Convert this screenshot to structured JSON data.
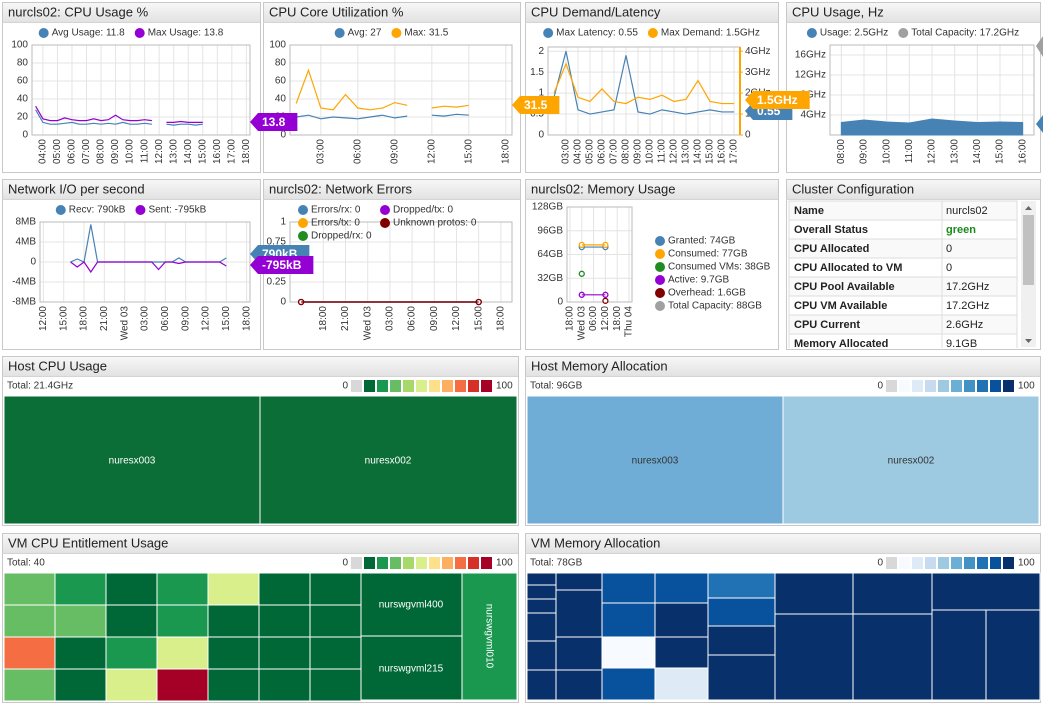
{
  "chart_data": [
    {
      "type": "line",
      "title": "nurcls02: CPU Usage %",
      "legend": "top",
      "categories": [
        null,
        "04:00",
        null,
        "05:00",
        null,
        "06:00",
        null,
        "07:00",
        null,
        "08:00",
        null,
        "09:00",
        null,
        "10:00",
        null,
        "11:00",
        null,
        "12:00",
        null,
        "13:00",
        null,
        "14:00",
        null,
        "15:00",
        null,
        "16:00",
        null,
        "17:00",
        null,
        "18:00"
      ],
      "series": [
        {
          "name": "Avg Usage: 11.8",
          "color": "#4682b4",
          "values": [
            28,
            14,
            12,
            12,
            13,
            14,
            12,
            12,
            13,
            12,
            13,
            12,
            14,
            12,
            12,
            13,
            12,
            null,
            12,
            11,
            12,
            12,
            11,
            12,
            null,
            null,
            null,
            null,
            null,
            null
          ]
        },
        {
          "name": "Max Usage: 13.8",
          "color": "#9400d3",
          "values": [
            32,
            18,
            16,
            16,
            19,
            17,
            16,
            16,
            18,
            16,
            17,
            22,
            17,
            16,
            16,
            17,
            16,
            null,
            14,
            14,
            15,
            14,
            14,
            14,
            null,
            null,
            null,
            null,
            null,
            null
          ]
        }
      ],
      "ylim": [
        0,
        100
      ],
      "yticks": [
        0,
        20,
        40,
        60,
        80,
        100
      ],
      "grid": true,
      "badges": [
        "13.8"
      ],
      "badge_colors": [
        "#9400d3"
      ]
    },
    {
      "type": "line",
      "title": "CPU Core Utilization %",
      "legend": "top",
      "categories": [
        null,
        null,
        "03:00",
        null,
        null,
        "06:00",
        null,
        null,
        "09:00",
        null,
        null,
        "12:00",
        null,
        null,
        "15:00",
        null,
        null,
        "18:00"
      ],
      "series": [
        {
          "name": "Avg: 27",
          "color": "#4682b4",
          "values": [
            20,
            22,
            18,
            20,
            19,
            18,
            20,
            22,
            19,
            21,
            null,
            22,
            21,
            23,
            22,
            null,
            null,
            null
          ]
        },
        {
          "name": "Max: 31.5",
          "color": "#ffa500",
          "values": [
            35,
            72,
            30,
            28,
            45,
            30,
            28,
            30,
            36,
            33,
            null,
            30,
            32,
            31,
            33,
            null,
            null,
            null
          ]
        }
      ],
      "ylim": [
        0,
        100
      ],
      "yticks": [
        0,
        20,
        40,
        60,
        80,
        100
      ],
      "grid": true,
      "badges": [
        "31.5"
      ],
      "badge_colors": [
        "#ffa500"
      ]
    },
    {
      "type": "line",
      "title": "CPU Demand/Latency",
      "legend": "top",
      "categories": [
        null,
        "03:00",
        "04:00",
        "05:00",
        "06:00",
        "07:00",
        "08:00",
        "09:00",
        "10:00",
        "11:00",
        "12:00",
        "13:00",
        "14:00",
        "15:00",
        "16:00",
        "17:00"
      ],
      "series": [
        {
          "name": "Max Latency: 0.55",
          "color": "#4682b4",
          "values": [
            0.9,
            2.0,
            0.6,
            0.5,
            0.55,
            0.6,
            1.9,
            0.55,
            0.5,
            0.6,
            0.55,
            0.5,
            0.55,
            0.6,
            0.55,
            0.55
          ]
        },
        {
          "name": "Max Demand: 1.5GHz",
          "color": "#ffa500",
          "axis": "y2",
          "values": [
            2.0,
            3.4,
            1.8,
            1.6,
            2.2,
            1.6,
            1.5,
            1.8,
            1.7,
            1.9,
            1.6,
            1.7,
            2.6,
            1.6,
            1.5,
            1.5
          ]
        }
      ],
      "ylim": [
        0,
        2.1
      ],
      "yticks": [
        0,
        0.5,
        1,
        1.5,
        2
      ],
      "y2lim": [
        0,
        4.2
      ],
      "y2ticks": [
        0,
        {
          "value": 1,
          "label": "1GHz"
        },
        {
          "value": 2,
          "label": "2GHz"
        },
        {
          "value": 3,
          "label": "3GHz"
        },
        {
          "value": 4,
          "label": "4GHz"
        }
      ],
      "grid": true,
      "badges": [
        "0.55",
        "1.5GHz"
      ],
      "badge_colors": [
        "#4682b4",
        "#ffa500"
      ]
    },
    {
      "type": "area",
      "title": "CPU Usage, Hz",
      "legend": "top",
      "categories": [
        "08:00",
        "09:00",
        "10:00",
        "11:00",
        "12:00",
        "13:00",
        "14:00",
        "15:00",
        "16:00"
      ],
      "series": [
        {
          "name": "Usage: 2.5GHz",
          "color": "#4682b4",
          "values": [
            2.5,
            3.0,
            2.6,
            2.4,
            3.2,
            2.8,
            2.5,
            2.6,
            2.5
          ]
        },
        {
          "name": "Total Capacity: 17.2GHz",
          "color": "#a0a0a0",
          "values": [
            null,
            null,
            null,
            null,
            null,
            null,
            null,
            null,
            null
          ]
        }
      ],
      "ylim": [
        0,
        18
      ],
      "yticks": [
        {
          "value": 4,
          "label": "4GHz"
        },
        {
          "value": 8,
          "label": "8GHz"
        },
        {
          "value": 12,
          "label": "12GHz"
        },
        {
          "value": 16,
          "label": "16GHz"
        }
      ],
      "grid": true
    },
    {
      "type": "line",
      "title": "Network I/O per second",
      "legend": "top",
      "categories": [
        "12:00",
        null,
        null,
        "15:00",
        null,
        null,
        "18:00",
        null,
        null,
        "21:00",
        null,
        null,
        "Wed 03",
        null,
        null,
        "03:00",
        null,
        null,
        "06:00",
        null,
        null,
        "09:00",
        null,
        null,
        "12:00",
        null,
        null,
        "15:00",
        null,
        null,
        "18:00"
      ],
      "series": [
        {
          "name": "Recv: 790kB",
          "color": "#4682b4",
          "values": [
            null,
            null,
            null,
            null,
            0,
            0.6,
            0,
            7.5,
            0,
            0,
            0,
            0,
            0,
            0,
            0,
            0,
            0,
            0,
            0,
            0,
            0.8,
            0,
            0,
            0,
            0,
            0,
            0,
            0.8,
            null,
            null,
            null
          ]
        },
        {
          "name": "Sent: -795kB",
          "color": "#9400d3",
          "values": [
            null,
            null,
            null,
            null,
            0,
            -1,
            0,
            -2,
            0,
            0,
            0,
            0,
            0,
            0,
            0,
            0,
            0,
            -1.5,
            0,
            0,
            -0.3,
            0,
            0,
            0,
            0,
            0,
            0,
            -0.8,
            null,
            null,
            null
          ]
        }
      ],
      "ylim": [
        -8,
        8
      ],
      "yticks": [
        {
          "value": -8,
          "label": "-8MB"
        },
        {
          "value": -4,
          "label": "-4MB"
        },
        0,
        {
          "value": 4,
          "label": "4MB"
        },
        {
          "value": 8,
          "label": "8MB"
        }
      ],
      "grid": true,
      "badges": [
        "790kB",
        "-795kB"
      ],
      "badge_colors": [
        "#4682b4",
        "#9400d3"
      ]
    },
    {
      "type": "line",
      "title": "nurcls02: Network Errors",
      "legend": "grid",
      "end_markers": true,
      "categories": [
        null,
        "18:00",
        "21:00",
        "Wed 03",
        "03:00",
        "06:00",
        "09:00",
        "12:00",
        "15:00",
        "18:00"
      ],
      "series": [
        {
          "name": "Errors/rx: 0",
          "color": "#4682b4",
          "values": [
            0,
            0,
            0,
            0,
            0,
            0,
            0,
            0,
            0,
            null
          ]
        },
        {
          "name": "Errors/tx: 0",
          "color": "#ffa500",
          "values": [
            0,
            0,
            0,
            0,
            0,
            0,
            0,
            0,
            0,
            null
          ]
        },
        {
          "name": "Dropped/rx: 0",
          "color": "#228b22",
          "values": [
            0,
            0,
            0,
            0,
            0,
            0,
            0,
            0,
            0,
            null
          ]
        },
        {
          "name": "Dropped/tx: 0",
          "color": "#9400d3",
          "values": [
            0,
            0,
            0,
            0,
            0,
            0,
            0,
            0,
            0,
            null
          ]
        },
        {
          "name": "Unknown protos: 0",
          "color": "#800000",
          "values": [
            0,
            0,
            0,
            0,
            0,
            0,
            0,
            0,
            0,
            null
          ]
        }
      ],
      "ylim": [
        0,
        1
      ],
      "yticks": [
        0,
        0.25,
        0.5,
        0.75,
        1
      ],
      "grid": true
    },
    {
      "type": "line",
      "title": "nurcls02: Memory Usage",
      "legend": "right",
      "end_markers": true,
      "categories": [
        "18:00",
        null,
        "Wed 03",
        null,
        "06:00",
        null,
        "12:00",
        null,
        "18:00",
        null,
        "Thu 04"
      ],
      "series": [
        {
          "name": "Granted: 74GB",
          "color": "#4682b4",
          "values": [
            null,
            null,
            74,
            74,
            74,
            74,
            74,
            null,
            null,
            null,
            null
          ]
        },
        {
          "name": "Consumed: 77GB",
          "color": "#ffa500",
          "values": [
            null,
            null,
            77,
            77,
            77,
            77,
            77,
            null,
            null,
            null,
            null
          ]
        },
        {
          "name": "Consumed VMs: 38GB",
          "color": "#228b22",
          "values": [
            null,
            null,
            38,
            null,
            null,
            null,
            null,
            null,
            null,
            null,
            null
          ]
        },
        {
          "name": "Active: 9.7GB",
          "color": "#9400d3",
          "values": [
            null,
            null,
            9.7,
            9.7,
            9.7,
            9.7,
            9.7,
            null,
            null,
            null,
            null
          ]
        },
        {
          "name": "Overhead: 1.6GB",
          "color": "#800000",
          "values": [
            null,
            null,
            null,
            null,
            null,
            null,
            1.6,
            null,
            null,
            null,
            null
          ]
        },
        {
          "name": "Total Capacity: 88GB",
          "color": "#a0a0a0",
          "values": [
            null,
            null,
            null,
            null,
            null,
            null,
            null,
            null,
            null,
            null,
            null
          ]
        }
      ],
      "ylim": [
        0,
        128
      ],
      "yticks": [
        0,
        {
          "value": 32,
          "label": "32GB"
        },
        {
          "value": 64,
          "label": "64GB"
        },
        {
          "value": 96,
          "label": "96GB"
        },
        {
          "value": 128,
          "label": "128GB"
        }
      ],
      "grid": true
    }
  ],
  "cluster_configuration": {
    "title": "Cluster Configuration",
    "rows": [
      [
        "Name",
        "nurcls02"
      ],
      [
        "Overall Status",
        "green"
      ],
      [
        "CPU Allocated",
        "0"
      ],
      [
        "CPU Allocated to VM",
        "0"
      ],
      [
        "CPU Pool Available",
        "17.2GHz"
      ],
      [
        "CPU VM Available",
        "17.2GHz"
      ],
      [
        "CPU Current",
        "2.6GHz"
      ],
      [
        "Memory Allocated",
        "9.1GB"
      ]
    ]
  },
  "treemaps": [
    {
      "title": "Host CPU Usage",
      "total": "Total: 21.4GHz",
      "scale_min": 0,
      "scale_max": 100,
      "labels": [
        "nuresx003",
        "nuresx002"
      ]
    },
    {
      "title": "Host Memory Allocation",
      "total": "Total: 96GB",
      "scale_min": 0,
      "scale_max": 100,
      "labels": [
        "nuresx003",
        "nuresx002"
      ]
    },
    {
      "title": "VM CPU Entitlement Usage",
      "total": "Total: 40",
      "scale_min": 0,
      "scale_max": 100,
      "labels": [
        "nurswgvml400",
        "nurswgvml215",
        "nurswgvml010"
      ]
    },
    {
      "title": "VM Memory Allocation",
      "total": "Total: 78GB",
      "scale_min": 0,
      "scale_max": 100,
      "labels": []
    }
  ]
}
